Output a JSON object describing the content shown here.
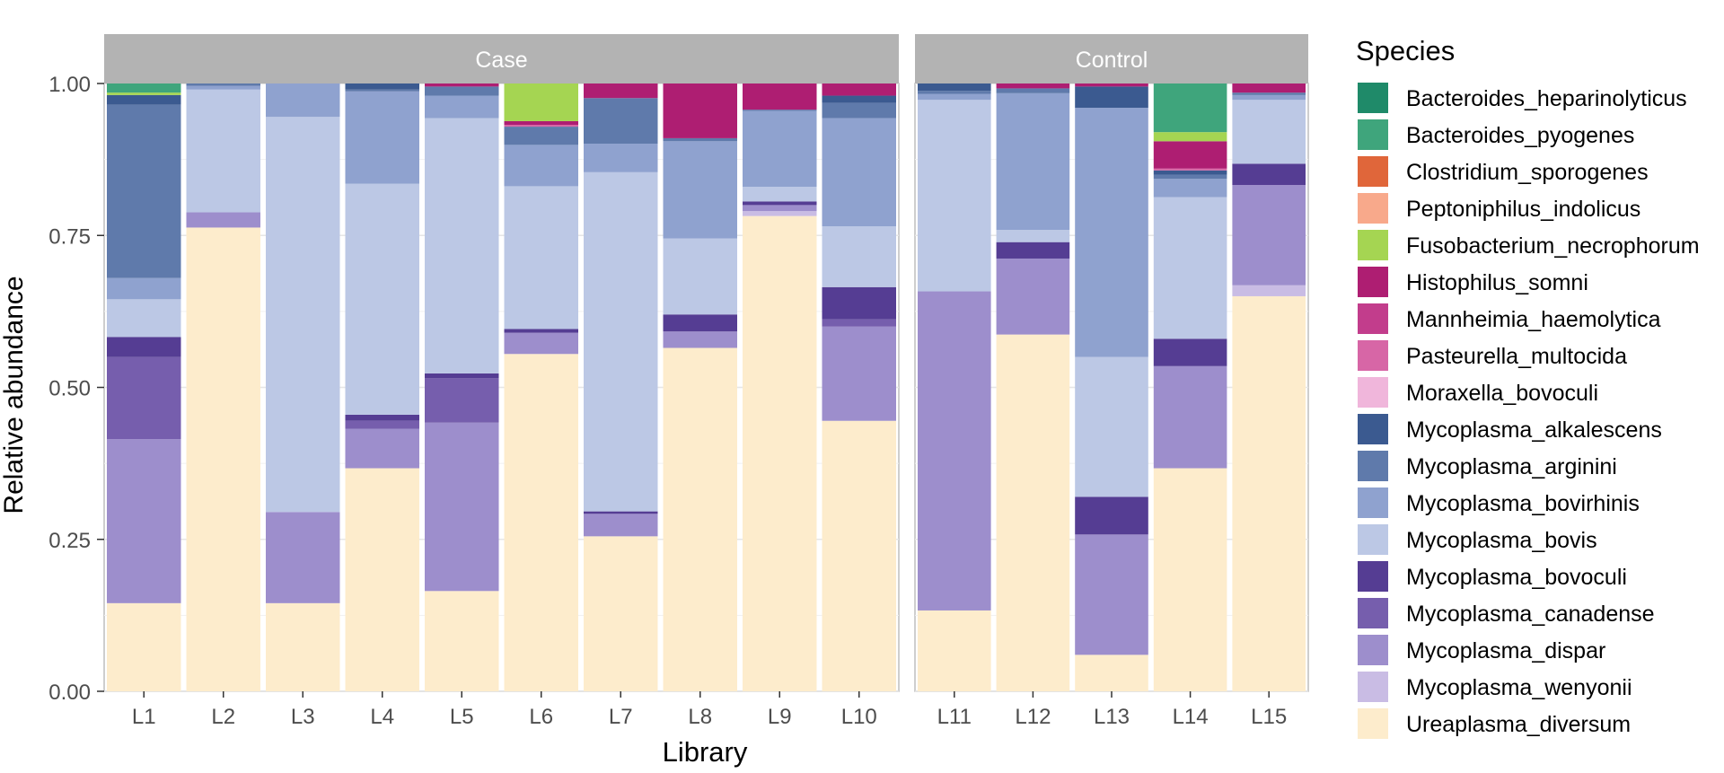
{
  "chart_data": {
    "type": "bar",
    "stacked": true,
    "title": "",
    "xlabel": "Library",
    "ylabel": "Relative abundance",
    "ylim": [
      0,
      1
    ],
    "yticks": [
      "0.00",
      "0.25",
      "0.50",
      "0.75",
      "1.00"
    ],
    "ytick_values": [
      0,
      0.25,
      0.5,
      0.75,
      1.0
    ],
    "legend_title": "Species",
    "legend_position": "right",
    "grid": true,
    "facets": [
      {
        "name": "Case",
        "categories": [
          "L1",
          "L2",
          "L3",
          "L4",
          "L5",
          "L6",
          "L7",
          "L8",
          "L9",
          "L10"
        ]
      },
      {
        "name": "Control",
        "categories": [
          "L11",
          "L12",
          "L13",
          "L14",
          "L15"
        ]
      }
    ],
    "series": [
      {
        "name": "Bacteroides_heparinolyticus",
        "color": "#1f8a69"
      },
      {
        "name": "Bacteroides_pyogenes",
        "color": "#3fa57c"
      },
      {
        "name": "Clostridium_sporogenes",
        "color": "#e0663a"
      },
      {
        "name": "Peptoniphilus_indolicus",
        "color": "#f8a98b"
      },
      {
        "name": "Fusobacterium_necrophorum",
        "color": "#a5d552"
      },
      {
        "name": "Histophilus_somni",
        "color": "#ae1e72"
      },
      {
        "name": "Mannheimia_haemolytica",
        "color": "#c23d8c"
      },
      {
        "name": "Pasteurella_multocida",
        "color": "#d766a6"
      },
      {
        "name": "Moraxella_bovoculi",
        "color": "#f0b6db"
      },
      {
        "name": "Mycoplasma_alkalescens",
        "color": "#3b5a90"
      },
      {
        "name": "Mycoplasma_arginini",
        "color": "#5f7aab"
      },
      {
        "name": "Mycoplasma_bovirhinis",
        "color": "#8fa2cf"
      },
      {
        "name": "Mycoplasma_bovis",
        "color": "#bcc8e5"
      },
      {
        "name": "Mycoplasma_bovoculi",
        "color": "#553d93"
      },
      {
        "name": "Mycoplasma_canadense",
        "color": "#765ead"
      },
      {
        "name": "Mycoplasma_dispar",
        "color": "#9d8ecc"
      },
      {
        "name": "Mycoplasma_wenyonii",
        "color": "#c9bce4"
      },
      {
        "name": "Ureaplasma_diversum",
        "color": "#fdeccc"
      }
    ],
    "bars": {
      "L1": {
        "Ureaplasma_diversum": 0.145,
        "Mycoplasma_dispar": 0.27,
        "Mycoplasma_canadense": 0.135,
        "Mycoplasma_bovoculi": 0.033,
        "Mycoplasma_bovis": 0.062,
        "Mycoplasma_bovirhinis": 0.035,
        "Mycoplasma_arginini": 0.285,
        "Mycoplasma_alkalescens": 0.016,
        "Fusobacterium_necrophorum": 0.004,
        "Bacteroides_pyogenes": 0.015
      },
      "L2": {
        "Ureaplasma_diversum": 0.763,
        "Mycoplasma_dispar": 0.025,
        "Mycoplasma_bovis": 0.202,
        "Mycoplasma_bovirhinis": 0.006,
        "Mycoplasma_arginini": 0.004
      },
      "L3": {
        "Ureaplasma_diversum": 0.145,
        "Mycoplasma_dispar": 0.15,
        "Mycoplasma_bovis": 0.65,
        "Mycoplasma_bovirhinis": 0.055
      },
      "L4": {
        "Ureaplasma_diversum": 0.367,
        "Mycoplasma_dispar": 0.065,
        "Mycoplasma_canadense": 0.013,
        "Mycoplasma_bovoculi": 0.01,
        "Mycoplasma_bovis": 0.38,
        "Mycoplasma_bovirhinis": 0.152,
        "Mycoplasma_arginini": 0.003,
        "Mycoplasma_alkalescens": 0.01
      },
      "L5": {
        "Ureaplasma_diversum": 0.165,
        "Mycoplasma_dispar": 0.277,
        "Mycoplasma_canadense": 0.073,
        "Mycoplasma_bovoculi": 0.008,
        "Mycoplasma_bovis": 0.42,
        "Mycoplasma_bovirhinis": 0.037,
        "Mycoplasma_arginini": 0.015,
        "Histophilus_somni": 0.005
      },
      "L6": {
        "Ureaplasma_diversum": 0.555,
        "Pasteurella_multocida": 0.003,
        "Mycoplasma_dispar": 0.035,
        "Mycoplasma_bovoculi": 0.006,
        "Mycoplasma_bovis": 0.235,
        "Mycoplasma_bovirhinis": 0.068,
        "Mycoplasma_arginini": 0.03,
        "Histophilus_somni": 0.006,
        "Fusobacterium_necrophorum": 0.062
      },
      "L7": {
        "Ureaplasma_diversum": 0.255,
        "Mycoplasma_dispar": 0.037,
        "Mycoplasma_bovoculi": 0.004,
        "Mycoplasma_bovis": 0.558,
        "Mycoplasma_bovirhinis": 0.047,
        "Mycoplasma_arginini": 0.075,
        "Histophilus_somni": 0.024
      },
      "L8": {
        "Ureaplasma_diversum": 0.565,
        "Mycoplasma_dispar": 0.027,
        "Mycoplasma_bovoculi": 0.028,
        "Mycoplasma_bovis": 0.125,
        "Mycoplasma_bovirhinis": 0.16,
        "Mycoplasma_arginini": 0.005,
        "Histophilus_somni": 0.09
      },
      "L9": {
        "Ureaplasma_diversum": 0.782,
        "Mycoplasma_wenyonii": 0.008,
        "Mycoplasma_dispar": 0.01,
        "Mycoplasma_bovoculi": 0.006,
        "Mycoplasma_bovis": 0.024,
        "Mycoplasma_bovirhinis": 0.125,
        "Mycoplasma_arginini": 0.002,
        "Histophilus_somni": 0.043
      },
      "L10": {
        "Ureaplasma_diversum": 0.445,
        "Mycoplasma_dispar": 0.155,
        "Mycoplasma_canadense": 0.012,
        "Mycoplasma_bovoculi": 0.053,
        "Mycoplasma_bovis": 0.1,
        "Mycoplasma_bovirhinis": 0.178,
        "Mycoplasma_arginini": 0.025,
        "Mycoplasma_alkalescens": 0.012,
        "Histophilus_somni": 0.02
      },
      "L11": {
        "Ureaplasma_diversum": 0.133,
        "Mycoplasma_dispar": 0.525,
        "Mycoplasma_bovis": 0.315,
        "Mycoplasma_bovirhinis": 0.01,
        "Mycoplasma_arginini": 0.005,
        "Mycoplasma_alkalescens": 0.012
      },
      "L12": {
        "Ureaplasma_diversum": 0.587,
        "Mycoplasma_dispar": 0.125,
        "Mycoplasma_bovoculi": 0.027,
        "Mycoplasma_bovis": 0.02,
        "Mycoplasma_bovirhinis": 0.225,
        "Mycoplasma_arginini": 0.008,
        "Histophilus_somni": 0.008
      },
      "L13": {
        "Ureaplasma_diversum": 0.06,
        "Mycoplasma_dispar": 0.198,
        "Mycoplasma_bovoculi": 0.062,
        "Mycoplasma_bovis": 0.23,
        "Mycoplasma_bovirhinis": 0.41,
        "Mycoplasma_alkalescens": 0.035,
        "Histophilus_somni": 0.005
      },
      "L14": {
        "Ureaplasma_diversum": 0.367,
        "Pasteurella_multocida": 0.003,
        "Mycoplasma_dispar": 0.168,
        "Mycoplasma_bovoculi": 0.045,
        "Mycoplasma_bovis": 0.233,
        "Mycoplasma_bovirhinis": 0.03,
        "Mycoplasma_arginini": 0.007,
        "Mycoplasma_alkalescens": 0.007,
        "Histophilus_somni": 0.045,
        "Fusobacterium_necrophorum": 0.015,
        "Bacteroides_pyogenes": 0.08
      },
      "L15": {
        "Ureaplasma_diversum": 0.65,
        "Mycoplasma_wenyonii": 0.018,
        "Mycoplasma_dispar": 0.165,
        "Mycoplasma_bovoculi": 0.035,
        "Mycoplasma_bovis": 0.105,
        "Mycoplasma_bovirhinis": 0.008,
        "Mycoplasma_arginini": 0.004,
        "Histophilus_somni": 0.015
      }
    }
  }
}
